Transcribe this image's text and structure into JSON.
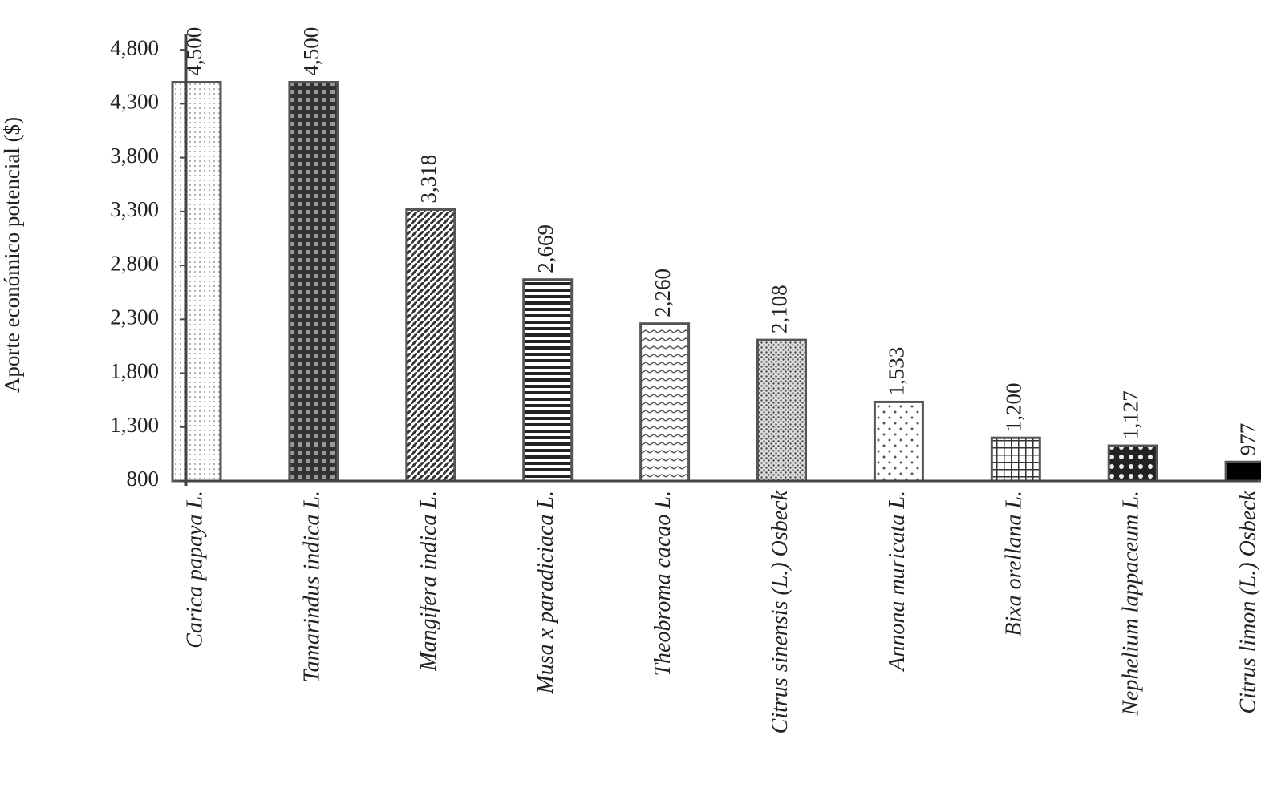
{
  "chart_data": {
    "type": "bar",
    "y_label": "Aporte económico potencial ($)",
    "categories": [
      "Carica papaya L.",
      "Tamarindus indica L.",
      "Mangifera indica L.",
      "Musa x paradiciaca L.",
      "Theobroma cacao L.",
      "Citrus sinensis (L.) Osbeck",
      "Annona muricata L.",
      "Bixa orellana L.",
      "Nephelium lappaceum L.",
      "Citrus limon (L.) Osbeck"
    ],
    "values": [
      4500,
      4500,
      3318,
      2669,
      2260,
      2108,
      1533,
      1200,
      1127,
      977
    ],
    "value_labels": [
      "4,500",
      "4,500",
      "3,318",
      "2,669",
      "2,260",
      "2,108",
      "1,533",
      "1,200",
      "1,127",
      "977"
    ],
    "ylim": [
      800,
      4950
    ],
    "yticks": [
      800,
      {
        "value": 1300,
        "label": "1,300"
      },
      {
        "value": 1800,
        "label": "1,800"
      },
      {
        "value": 2300,
        "label": "2,300"
      },
      {
        "value": 2800,
        "label": "2,800"
      },
      {
        "value": 3300,
        "label": "3,300"
      },
      {
        "value": 3800,
        "label": "3,800"
      },
      {
        "value": 4300,
        "label": "4,300"
      },
      {
        "value": 4800,
        "label": "4,800"
      }
    ],
    "grid": false
  }
}
